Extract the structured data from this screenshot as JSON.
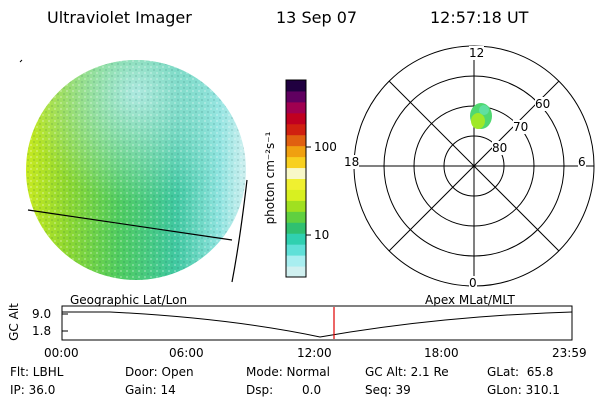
{
  "header": {
    "instrument": "Ultraviolet Imager",
    "date": "13 Sep 07",
    "time": "12:57:18 UT"
  },
  "colorbar": {
    "unit_label": "photon cm⁻²s⁻¹",
    "ticks": [
      "100",
      "10"
    ],
    "colors": [
      "#d0f0f0",
      "#a8eef0",
      "#60e0d8",
      "#30d0b0",
      "#30c070",
      "#60d040",
      "#a0e020",
      "#d8f020",
      "#f0f030",
      "#f8f8c8",
      "#f8d020",
      "#f0a010",
      "#e06010",
      "#d02010",
      "#c00020",
      "#a00050",
      "#600060",
      "#200040"
    ]
  },
  "polar": {
    "mlt_labels": {
      "top": "12",
      "left": "18",
      "right": "6",
      "bottom": "0"
    },
    "lat_labels": [
      "60",
      "70",
      "80"
    ]
  },
  "timeline": {
    "left_label": "Geographic Lat/Lon",
    "right_label": "Apex MLat/MLT",
    "axis_label": "GC Alt",
    "y_ticks": [
      "9.0",
      "1.8"
    ],
    "x_ticks": [
      "00:00",
      "06:00",
      "12:00",
      "18:00",
      "23:59"
    ]
  },
  "info": {
    "flt": "Flt: LBHL",
    "ip": "IP: 36.0",
    "door": "Door: Open",
    "gain": "Gain: 14",
    "mode": "Mode: Normal",
    "dsp_label": "Dsp:",
    "dsp_value": "0.0",
    "gc_alt": "GC Alt: 2.1 Re",
    "seq": "Seq: 39",
    "glat": "GLat:  65.8",
    "glon": "GLon: 310.1"
  }
}
